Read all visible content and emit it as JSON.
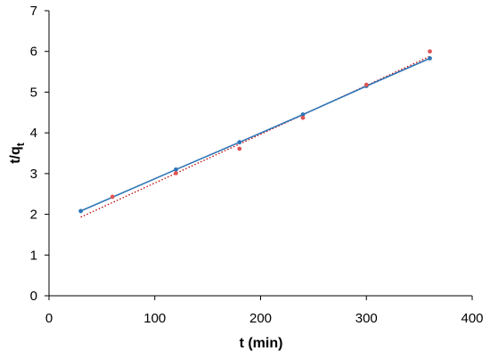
{
  "chart_data": {
    "type": "scatter",
    "xlabel": "t (min)",
    "ylabel": {
      "main": "t/q",
      "sub": "t"
    },
    "xlim": [
      0,
      400
    ],
    "ylim": [
      0,
      7
    ],
    "x_ticks": [
      0,
      100,
      200,
      300,
      400
    ],
    "y_ticks": [
      0,
      1,
      2,
      3,
      4,
      5,
      6,
      7
    ],
    "grid": false,
    "series": [
      {
        "kind": "line-markers",
        "color": "#2e75b6",
        "points": [
          [
            30,
            2.08
          ],
          [
            120,
            3.1
          ],
          [
            180,
            3.77
          ],
          [
            240,
            4.45
          ],
          [
            300,
            5.15
          ],
          [
            360,
            5.83
          ]
        ]
      },
      {
        "kind": "markers",
        "color": "#e05555",
        "points": [
          [
            60,
            2.43
          ],
          [
            120,
            3.01
          ],
          [
            180,
            3.61
          ],
          [
            240,
            4.37
          ],
          [
            300,
            5.18
          ],
          [
            360,
            6.0
          ]
        ]
      }
    ],
    "trendlines": [
      {
        "style": "dotted",
        "color": "#c00000",
        "from": [
          30,
          1.93
        ],
        "to": [
          360,
          5.88
        ]
      }
    ]
  }
}
